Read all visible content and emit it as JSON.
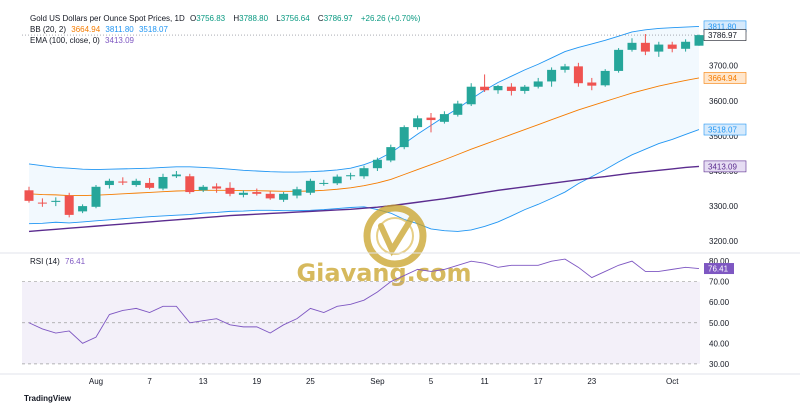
{
  "header": {
    "title": "Gold US Dollars per Ounce Spot Prices, 1D",
    "ohlc": {
      "open_label": "O",
      "open": "3756.83",
      "high_label": "H",
      "high": "3788.80",
      "low_label": "L",
      "low": "3756.64",
      "close_label": "C",
      "close": "3786.97",
      "change": "+26.26 (+0.70%)"
    },
    "bb_label": "BB (20, 2)",
    "bb_values": [
      "3664.94",
      "3811.80",
      "3518.07"
    ],
    "ema_label": "EMA (100, close, 0)",
    "ema_value": "3413.09",
    "rsi_label": "RSI (14)",
    "rsi_value": "76.41"
  },
  "watermark": "Giavang.com",
  "footer_logo": "TradingView",
  "colors": {
    "up": "#26a69a",
    "down": "#ef5350",
    "bb_basis": "#f57c00",
    "bb_band": "#2196f3",
    "ema": "#5b2c8f",
    "rsi": "#7e57c2",
    "last_price": "#131722",
    "watermark": "#c9a227"
  },
  "chart_data": [
    {
      "type": "candlestick",
      "title": "Gold US Dollars per Ounce Spot Prices, 1D",
      "y_ticks": [
        3200,
        3300,
        3400,
        3500,
        3600,
        3700
      ],
      "ylim": [
        3175,
        3830
      ],
      "x_ticks": [
        "Aug",
        "7",
        "13",
        "19",
        "25",
        "Sep",
        "5",
        "11",
        "17",
        "23",
        "Oct"
      ],
      "price_labels": [
        {
          "value": "3811.80",
          "series": "BB upper"
        },
        {
          "value": "3786.97",
          "series": "last close"
        },
        {
          "value": "3664.94",
          "series": "BB basis"
        },
        {
          "value": "3518.07",
          "series": "BB lower"
        },
        {
          "value": "3413.09",
          "series": "EMA"
        }
      ],
      "candles": [
        {
          "o": 3345,
          "h": 3355,
          "l": 3310,
          "c": 3315
        },
        {
          "o": 3310,
          "h": 3322,
          "l": 3298,
          "c": 3308
        },
        {
          "o": 3312,
          "h": 3325,
          "l": 3300,
          "c": 3315
        },
        {
          "o": 3330,
          "h": 3338,
          "l": 3268,
          "c": 3275
        },
        {
          "o": 3285,
          "h": 3305,
          "l": 3280,
          "c": 3300
        },
        {
          "o": 3298,
          "h": 3360,
          "l": 3294,
          "c": 3355
        },
        {
          "o": 3360,
          "h": 3378,
          "l": 3350,
          "c": 3372
        },
        {
          "o": 3370,
          "h": 3382,
          "l": 3360,
          "c": 3367
        },
        {
          "o": 3360,
          "h": 3378,
          "l": 3355,
          "c": 3372
        },
        {
          "o": 3366,
          "h": 3380,
          "l": 3348,
          "c": 3352
        },
        {
          "o": 3350,
          "h": 3392,
          "l": 3345,
          "c": 3383
        },
        {
          "o": 3385,
          "h": 3400,
          "l": 3380,
          "c": 3390
        },
        {
          "o": 3385,
          "h": 3392,
          "l": 3335,
          "c": 3340
        },
        {
          "o": 3345,
          "h": 3360,
          "l": 3340,
          "c": 3355
        },
        {
          "o": 3356,
          "h": 3365,
          "l": 3338,
          "c": 3350
        },
        {
          "o": 3352,
          "h": 3368,
          "l": 3328,
          "c": 3335
        },
        {
          "o": 3332,
          "h": 3345,
          "l": 3325,
          "c": 3338
        },
        {
          "o": 3340,
          "h": 3350,
          "l": 3330,
          "c": 3335
        },
        {
          "o": 3335,
          "h": 3342,
          "l": 3318,
          "c": 3322
        },
        {
          "o": 3318,
          "h": 3340,
          "l": 3312,
          "c": 3335
        },
        {
          "o": 3330,
          "h": 3355,
          "l": 3322,
          "c": 3348
        },
        {
          "o": 3338,
          "h": 3378,
          "l": 3332,
          "c": 3372
        },
        {
          "o": 3365,
          "h": 3375,
          "l": 3358,
          "c": 3366
        },
        {
          "o": 3365,
          "h": 3390,
          "l": 3360,
          "c": 3384
        },
        {
          "o": 3385,
          "h": 3395,
          "l": 3375,
          "c": 3388
        },
        {
          "o": 3385,
          "h": 3415,
          "l": 3378,
          "c": 3408
        },
        {
          "o": 3408,
          "h": 3438,
          "l": 3400,
          "c": 3432
        },
        {
          "o": 3430,
          "h": 3475,
          "l": 3425,
          "c": 3468
        },
        {
          "o": 3468,
          "h": 3530,
          "l": 3462,
          "c": 3525
        },
        {
          "o": 3525,
          "h": 3558,
          "l": 3518,
          "c": 3550
        },
        {
          "o": 3552,
          "h": 3565,
          "l": 3510,
          "c": 3545
        },
        {
          "o": 3540,
          "h": 3570,
          "l": 3535,
          "c": 3562
        },
        {
          "o": 3560,
          "h": 3600,
          "l": 3555,
          "c": 3592
        },
        {
          "o": 3590,
          "h": 3650,
          "l": 3585,
          "c": 3640
        },
        {
          "o": 3640,
          "h": 3675,
          "l": 3625,
          "c": 3630
        },
        {
          "o": 3630,
          "h": 3645,
          "l": 3620,
          "c": 3642
        },
        {
          "o": 3640,
          "h": 3650,
          "l": 3615,
          "c": 3628
        },
        {
          "o": 3628,
          "h": 3645,
          "l": 3620,
          "c": 3640
        },
        {
          "o": 3640,
          "h": 3665,
          "l": 3635,
          "c": 3655
        },
        {
          "o": 3655,
          "h": 3695,
          "l": 3640,
          "c": 3688
        },
        {
          "o": 3688,
          "h": 3705,
          "l": 3680,
          "c": 3698
        },
        {
          "o": 3698,
          "h": 3708,
          "l": 3640,
          "c": 3650
        },
        {
          "o": 3652,
          "h": 3665,
          "l": 3630,
          "c": 3643
        },
        {
          "o": 3644,
          "h": 3690,
          "l": 3640,
          "c": 3685
        },
        {
          "o": 3685,
          "h": 3750,
          "l": 3680,
          "c": 3745
        },
        {
          "o": 3745,
          "h": 3778,
          "l": 3740,
          "c": 3765
        },
        {
          "o": 3765,
          "h": 3790,
          "l": 3730,
          "c": 3740
        },
        {
          "o": 3740,
          "h": 3768,
          "l": 3725,
          "c": 3760
        },
        {
          "o": 3760,
          "h": 3768,
          "l": 3738,
          "c": 3748
        },
        {
          "o": 3748,
          "h": 3775,
          "l": 3740,
          "c": 3768
        },
        {
          "o": 3756.83,
          "h": 3788.8,
          "l": 3756.64,
          "c": 3786.97
        }
      ],
      "bb_upper": [
        3420,
        3415,
        3410,
        3408,
        3405,
        3404,
        3405,
        3406,
        3407,
        3408,
        3410,
        3412,
        3412,
        3410,
        3408,
        3405,
        3402,
        3400,
        3398,
        3397,
        3397,
        3398,
        3400,
        3403,
        3408,
        3418,
        3432,
        3452,
        3478,
        3505,
        3530,
        3555,
        3578,
        3605,
        3630,
        3652,
        3670,
        3688,
        3704,
        3722,
        3740,
        3752,
        3762,
        3772,
        3784,
        3796,
        3802,
        3806,
        3808,
        3810,
        3811.8
      ],
      "bb_basis": [
        3335,
        3333,
        3332,
        3330,
        3330,
        3331,
        3333,
        3335,
        3337,
        3339,
        3341,
        3343,
        3344,
        3345,
        3345,
        3345,
        3344,
        3344,
        3343,
        3342,
        3342,
        3343,
        3345,
        3348,
        3352,
        3358,
        3366,
        3376,
        3390,
        3404,
        3418,
        3432,
        3447,
        3462,
        3476,
        3490,
        3504,
        3518,
        3532,
        3546,
        3560,
        3574,
        3586,
        3598,
        3610,
        3622,
        3632,
        3642,
        3650,
        3658,
        3664.94
      ],
      "bb_lower": [
        3250,
        3251,
        3254,
        3252,
        3255,
        3258,
        3261,
        3264,
        3267,
        3270,
        3272,
        3274,
        3276,
        3280,
        3282,
        3285,
        3286,
        3288,
        3288,
        3287,
        3287,
        3288,
        3290,
        3293,
        3296,
        3298,
        3290,
        3280,
        3262,
        3250,
        3235,
        3230,
        3228,
        3232,
        3242,
        3255,
        3272,
        3290,
        3305,
        3322,
        3340,
        3364,
        3384,
        3404,
        3426,
        3446,
        3462,
        3478,
        3490,
        3504,
        3518.07
      ],
      "ema": [
        3228,
        3231,
        3234,
        3237,
        3240,
        3243,
        3246,
        3249,
        3252,
        3255,
        3258,
        3261,
        3264,
        3267,
        3270,
        3273,
        3275,
        3277,
        3279,
        3281,
        3283,
        3285,
        3287,
        3289,
        3291,
        3294,
        3297,
        3301,
        3306,
        3311,
        3316,
        3321,
        3327,
        3333,
        3339,
        3345,
        3350,
        3355,
        3360,
        3365,
        3370,
        3375,
        3380,
        3384,
        3389,
        3394,
        3398,
        3402,
        3406,
        3410,
        3413.09
      ]
    },
    {
      "type": "line",
      "title": "RSI (14)",
      "y_ticks": [
        30,
        40,
        50,
        60,
        70,
        80
      ],
      "ylim": [
        27,
        83
      ],
      "band": [
        30,
        70
      ],
      "reference_lines": [
        30,
        50,
        70
      ],
      "values": [
        50,
        47,
        45,
        46,
        40,
        43,
        54,
        56,
        57,
        55,
        58,
        58,
        50,
        51,
        52,
        49,
        48,
        48,
        45,
        49,
        52,
        57,
        55,
        58,
        59,
        61,
        65,
        70,
        73,
        76,
        75,
        76,
        78,
        80,
        79,
        77,
        78,
        78,
        78,
        80,
        81,
        77,
        72,
        75,
        78,
        80,
        75,
        75,
        76,
        77,
        76.41
      ]
    }
  ]
}
